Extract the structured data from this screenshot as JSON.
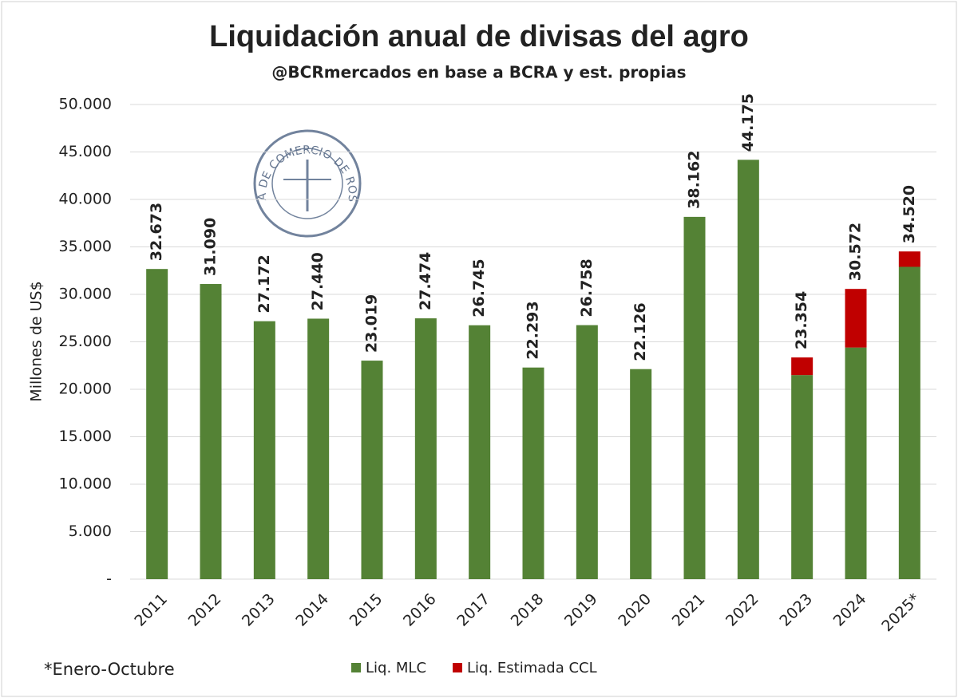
{
  "chart_data": {
    "type": "stacked_bar",
    "title": "Liquidación anual de divisas del agro",
    "subtitle": "@BCRmercados en base a BCRA y est. propias",
    "y_label": "Millones de US$",
    "note": "*Enero-Octubre",
    "logo_text": "BOLSA DE COMERCIO DE ROSARIO",
    "categories": [
      "2011",
      "2012",
      "2013",
      "2014",
      "2015",
      "2016",
      "2017",
      "2018",
      "2019",
      "2020",
      "2021",
      "2022",
      "2023",
      "2024",
      "2025*"
    ],
    "series": [
      {
        "name": "Liq. MLC",
        "color": "#548235",
        "values": [
          32673,
          31090,
          27172,
          27440,
          23019,
          27474,
          26745,
          22293,
          26758,
          22126,
          38162,
          44175,
          21500,
          24400,
          32900
        ]
      },
      {
        "name": "Liq. Estimada CCL",
        "color": "#c00000",
        "values": [
          null,
          null,
          null,
          null,
          null,
          null,
          null,
          null,
          null,
          null,
          null,
          null,
          1854,
          6172,
          1620
        ]
      }
    ],
    "totals": {
      "values": [
        32673,
        31090,
        27172,
        27440,
        23019,
        27474,
        26745,
        22293,
        26758,
        22126,
        38162,
        44175,
        23354,
        30572,
        34520
      ],
      "value_labels": [
        "32.673",
        "31.090",
        "27.172",
        "27.440",
        "23.019",
        "27.474",
        "26.745",
        "22.293",
        "26.758",
        "22.126",
        "38.162",
        "44.175",
        "23.354",
        "30.572",
        "34.520"
      ]
    },
    "ylim": [
      0,
      50000
    ],
    "yticks": [
      {
        "value": 0,
        "label": "-"
      },
      {
        "value": 5000,
        "label": "5.000"
      },
      {
        "value": 10000,
        "label": "10.000"
      },
      {
        "value": 15000,
        "label": "15.000"
      },
      {
        "value": 20000,
        "label": "20.000"
      },
      {
        "value": 25000,
        "label": "25.000"
      },
      {
        "value": 30000,
        "label": "30.000"
      },
      {
        "value": 35000,
        "label": "35.000"
      },
      {
        "value": 40000,
        "label": "40.000"
      },
      {
        "value": 45000,
        "label": "45.000"
      },
      {
        "value": 50000,
        "label": "50.000"
      }
    ],
    "grid": true
  }
}
